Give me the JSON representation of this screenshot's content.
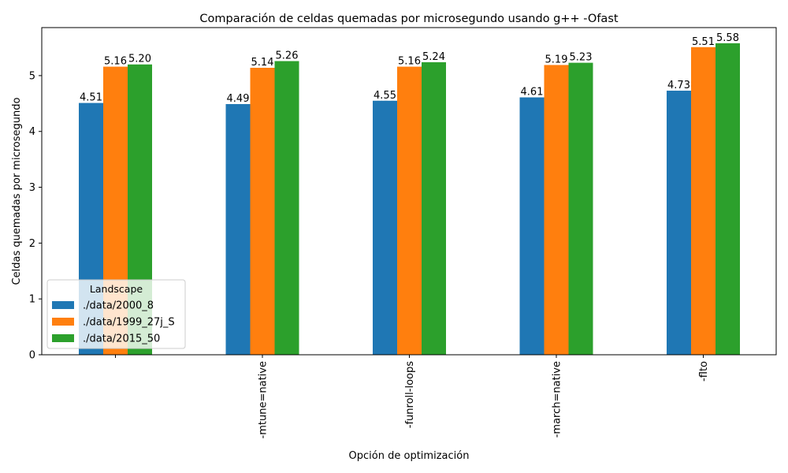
{
  "chart_data": {
    "type": "bar",
    "title": "Comparación de celdas quemadas por microsegundo usando g++ -Ofast",
    "xlabel": "Opción de optimización",
    "ylabel": "Celdas quemadas por microsegundo",
    "categories": [
      "",
      "-mtune=native",
      "-funroll-loops",
      "-march=native",
      "-flto"
    ],
    "series": [
      {
        "name": "./data/2000_8",
        "color": "#1f77b4",
        "values": [
          4.51,
          4.49,
          4.55,
          4.61,
          4.73
        ],
        "labels": [
          "4.51",
          "4.49",
          "4.55",
          "4.61",
          "4.73"
        ]
      },
      {
        "name": "./data/1999_27j_S",
        "color": "#ff7f0e",
        "values": [
          5.16,
          5.14,
          5.16,
          5.19,
          5.51
        ],
        "labels": [
          "5.16",
          "5.14",
          "5.16",
          "5.19",
          "5.51"
        ]
      },
      {
        "name": "./data/2015_50",
        "color": "#2ca02c",
        "values": [
          5.2,
          5.26,
          5.24,
          5.23,
          5.58
        ],
        "labels": [
          "5.20",
          "5.26",
          "5.24",
          "5.23",
          "5.58"
        ]
      }
    ],
    "ylim": [
      0,
      5.86
    ],
    "yticks": [
      "0",
      "1",
      "2",
      "3",
      "4",
      "5"
    ],
    "legend": {
      "title": "Landscape",
      "position": "lower-left"
    },
    "grid": false
  }
}
